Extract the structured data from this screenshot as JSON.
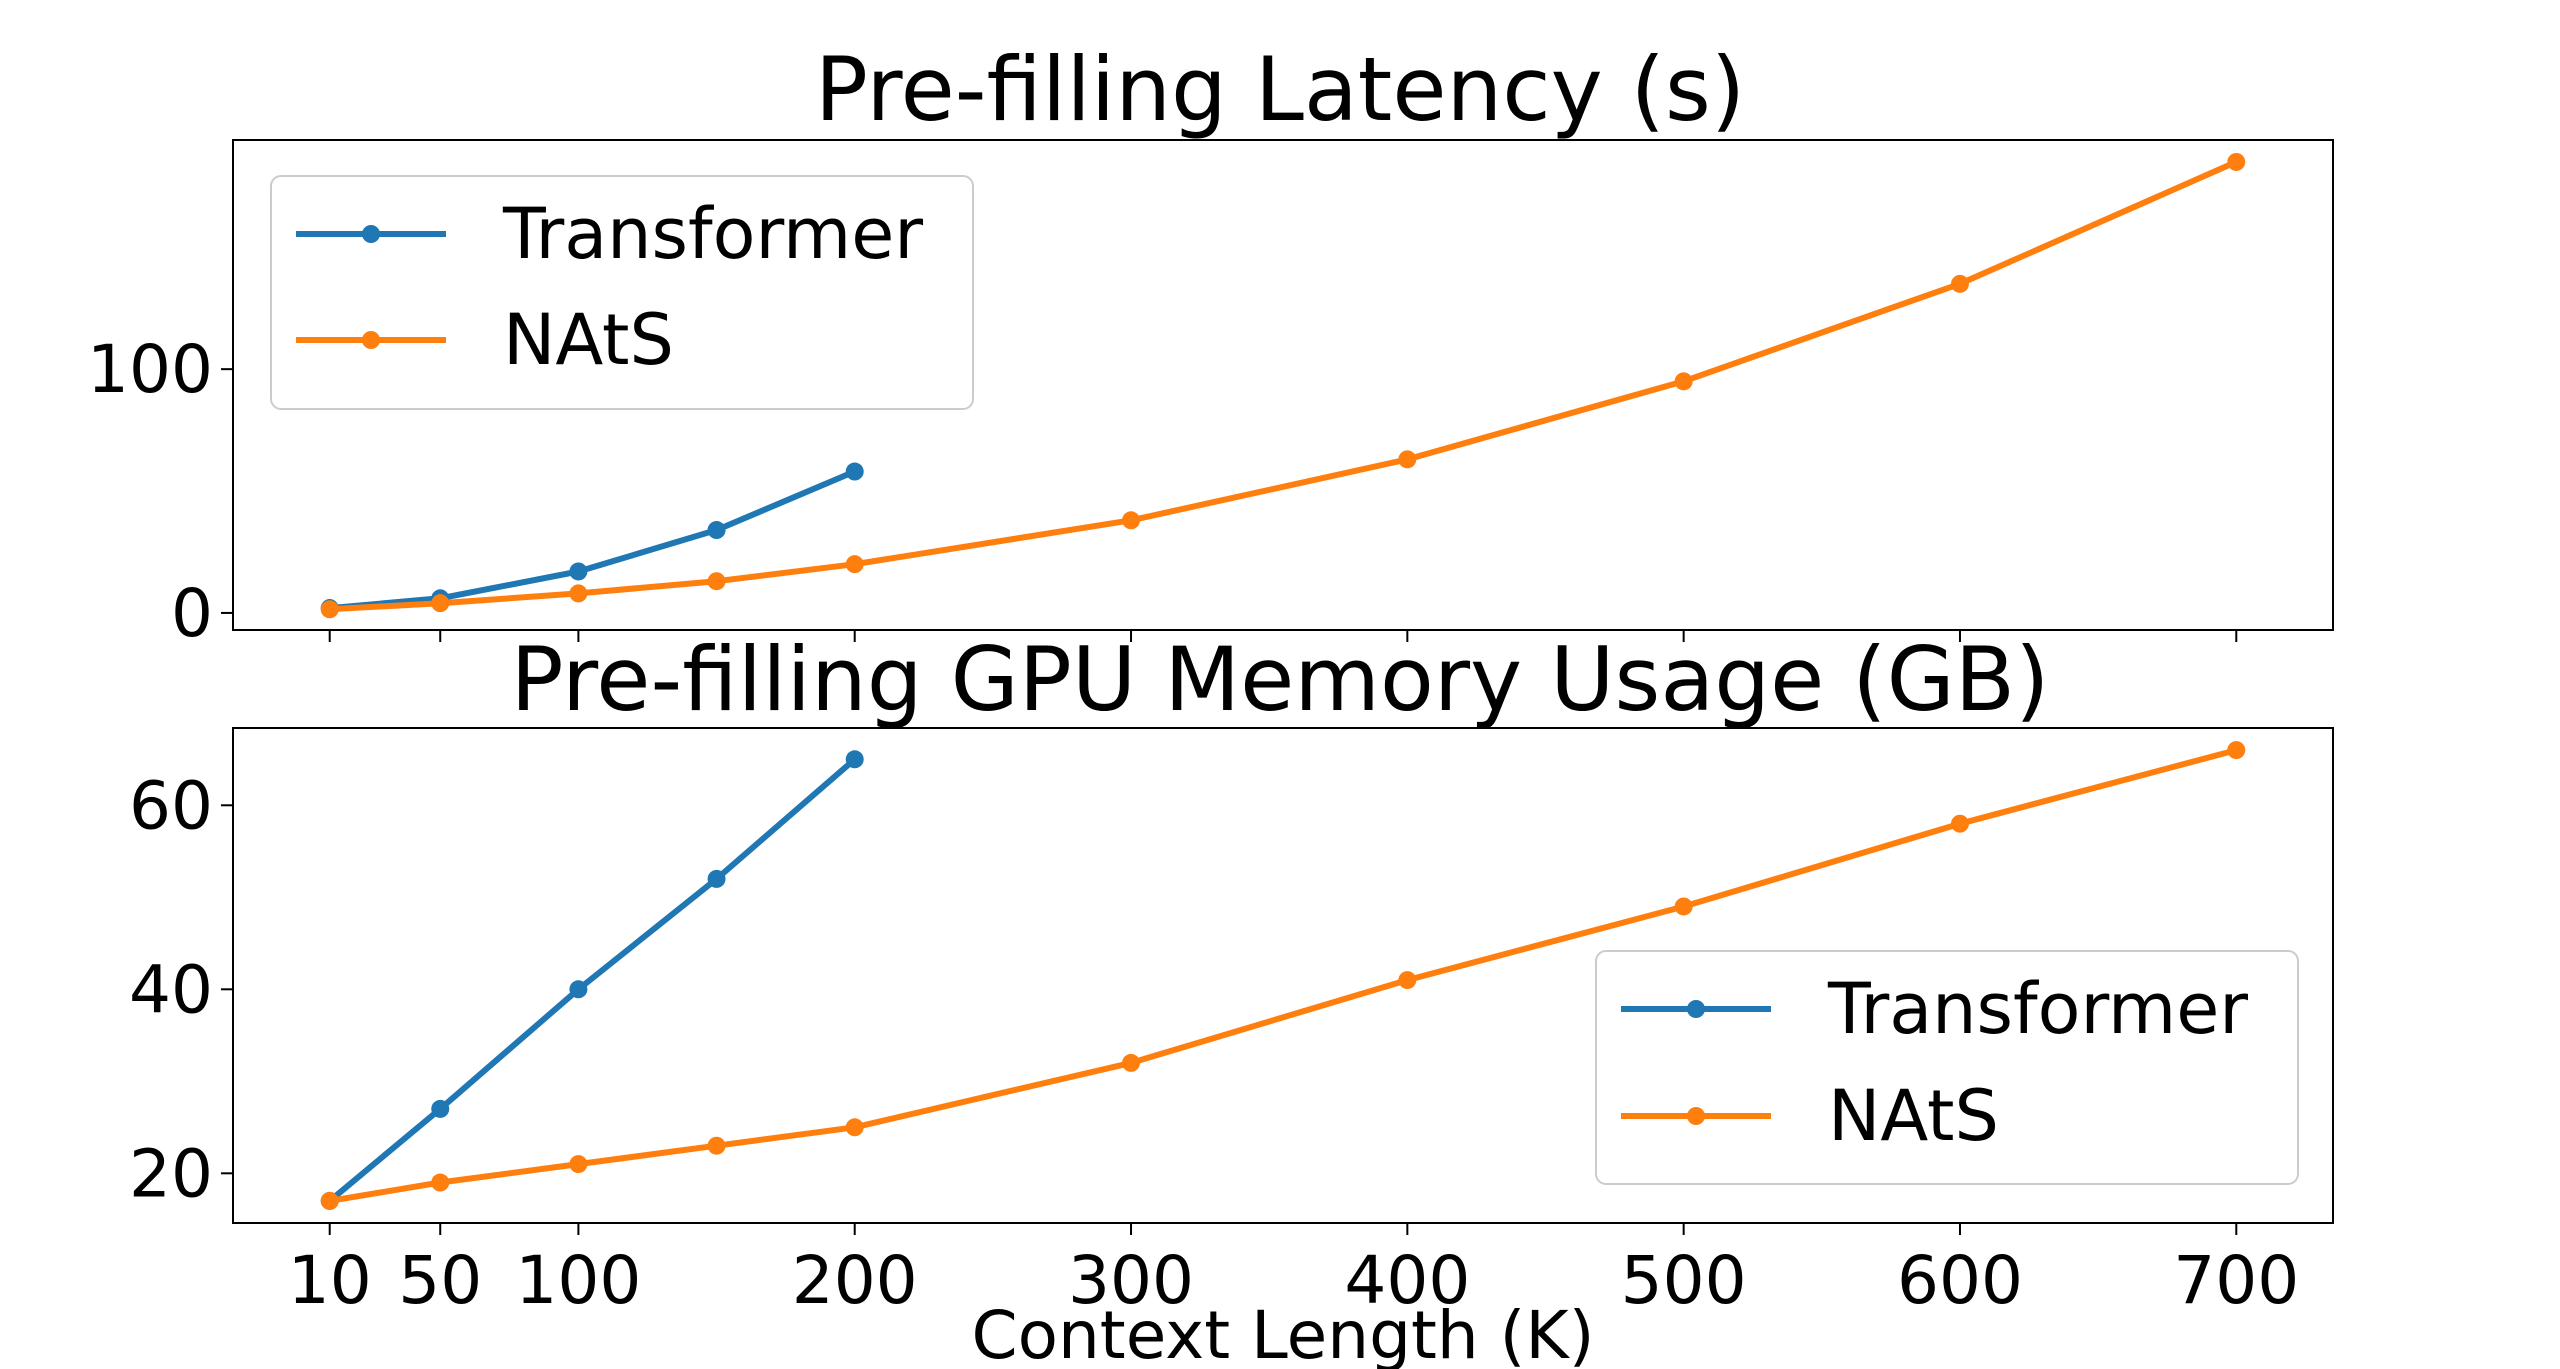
{
  "chart_data": [
    {
      "type": "line",
      "title": "Pre-filling Latency (s)",
      "xlabel": "",
      "ylabel": "",
      "x_tick_labels": [],
      "y_tick_labels": [
        "0",
        "100"
      ],
      "y_ticks": [
        0,
        100
      ],
      "ylim": [
        -7,
        194
      ],
      "grid": false,
      "legend_position": "upper left",
      "series": [
        {
          "name": "Transformer",
          "color": "#1f77b4",
          "x": [
            10,
            50,
            100,
            150,
            200
          ],
          "y": [
            2,
            6,
            17,
            34,
            58
          ]
        },
        {
          "name": "NAtS",
          "color": "#ff7f0e",
          "x": [
            10,
            50,
            100,
            150,
            200,
            300,
            400,
            500,
            600,
            700
          ],
          "y": [
            1.5,
            4,
            8,
            13,
            20,
            38,
            63,
            95,
            135,
            185
          ]
        }
      ]
    },
    {
      "type": "line",
      "title": "Pre-filling GPU Memory Usage (GB)",
      "xlabel": "Context Length (K)",
      "ylabel": "",
      "x_ticks": [
        10,
        50,
        100,
        200,
        300,
        400,
        500,
        600,
        700
      ],
      "x_tick_labels": [
        "10",
        "50",
        "100",
        "200",
        "300",
        "400",
        "500",
        "600",
        "700"
      ],
      "y_ticks": [
        20,
        40,
        60
      ],
      "y_tick_labels": [
        "20",
        "40",
        "60"
      ],
      "ylim": [
        14.6,
        68.4
      ],
      "xlim": [
        -25,
        735
      ],
      "grid": false,
      "legend_position": "lower right",
      "series": [
        {
          "name": "Transformer",
          "color": "#1f77b4",
          "x": [
            10,
            50,
            100,
            150,
            200
          ],
          "y": [
            17,
            27,
            40,
            52,
            65
          ]
        },
        {
          "name": "NAtS",
          "color": "#ff7f0e",
          "x": [
            10,
            50,
            100,
            150,
            200,
            300,
            400,
            500,
            600,
            700
          ],
          "y": [
            17,
            19,
            21,
            23,
            25,
            32,
            41,
            49,
            58,
            66
          ]
        }
      ]
    }
  ]
}
